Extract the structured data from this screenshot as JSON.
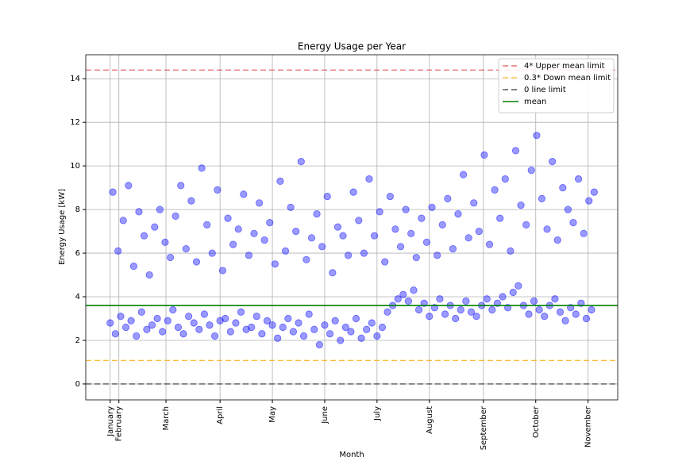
{
  "chart_data": {
    "type": "scatter",
    "title": "Energy Usage per Year",
    "x_label": "Month",
    "y_label": "Energy Usage [kW]",
    "color": "#0000ff",
    "grid": true,
    "legend": "upper right",
    "xlim": [
      -14,
      291
    ],
    "ylim": [
      -0.73,
      15.1
    ],
    "xticks": [
      {
        "value": 0,
        "label": "January"
      },
      {
        "value": 5,
        "label": "February"
      },
      {
        "value": 32,
        "label": "March"
      },
      {
        "value": 63,
        "label": "April"
      },
      {
        "value": 93,
        "label": "May"
      },
      {
        "value": 123,
        "label": "June"
      },
      {
        "value": 153,
        "label": "July"
      },
      {
        "value": 183,
        "label": "August"
      },
      {
        "value": 214,
        "label": "September"
      },
      {
        "value": 244,
        "label": "October"
      },
      {
        "value": 274,
        "label": "November"
      }
    ],
    "yticks": [
      0,
      2,
      4,
      6,
      8,
      10,
      12,
      14
    ],
    "hlines": [
      {
        "name": "4* Upper mean limit",
        "value": 14.4,
        "color": "#d62728",
        "dashed": true
      },
      {
        "name": "0.3* Down mean limit",
        "value": 1.08,
        "color": "#ffa500",
        "dashed": true
      },
      {
        "name": "0 line limit",
        "value": 0,
        "color": "#000000",
        "dashed": true
      },
      {
        "name": "mean",
        "value": 3.6,
        "color": "#008000",
        "dashed": false
      }
    ],
    "x": [
      0,
      3,
      6,
      9,
      12,
      15,
      18,
      21,
      24,
      27,
      30,
      33,
      36,
      39,
      42,
      45,
      48,
      51,
      54,
      57,
      60,
      63,
      66,
      69,
      72,
      75,
      78,
      81,
      84,
      87,
      90,
      93,
      96,
      99,
      102,
      105,
      108,
      111,
      114,
      117,
      120,
      123,
      126,
      129,
      132,
      135,
      138,
      141,
      144,
      147,
      150,
      153,
      156,
      159,
      162,
      165,
      168,
      171,
      174,
      177,
      180,
      183,
      186,
      189,
      192,
      195,
      198,
      201,
      204,
      207,
      210,
      213,
      216,
      219,
      222,
      225,
      228,
      231,
      234,
      237,
      240,
      243,
      246,
      249,
      252,
      255,
      258,
      261,
      264,
      267,
      270,
      273,
      276,
      1.5,
      4.5,
      7.5,
      10.5,
      13.5,
      16.5,
      19.5,
      22.5,
      25.5,
      28.5,
      31.5,
      34.5,
      37.5,
      40.5,
      43.5,
      46.5,
      49.5,
      52.5,
      55.5,
      58.5,
      61.5,
      64.5,
      67.5,
      70.5,
      73.5,
      76.5,
      79.5,
      82.5,
      85.5,
      88.5,
      91.5,
      94.5,
      97.5,
      100.5,
      103.5,
      106.5,
      109.5,
      112.5,
      115.5,
      118.5,
      121.5,
      124.5,
      127.5,
      130.5,
      133.5,
      136.5,
      139.5,
      142.5,
      145.5,
      148.5,
      151.5,
      154.5,
      157.5,
      160.5,
      163.5,
      166.5,
      169.5,
      172.5,
      175.5,
      178.5,
      181.5,
      184.5,
      187.5,
      190.5,
      193.5,
      196.5,
      199.5,
      202.5,
      205.5,
      208.5,
      211.5,
      214.5,
      217.5,
      220.5,
      223.5,
      226.5,
      229.5,
      232.5,
      235.5,
      238.5,
      241.5,
      244.5,
      247.5,
      250.5,
      253.5,
      256.5,
      259.5,
      262.5,
      265.5,
      268.5,
      271.5,
      274.5,
      277.5
    ],
    "values": [
      2.8,
      2.3,
      3.1,
      2.6,
      2.9,
      2.2,
      3.3,
      2.5,
      2.7,
      3.0,
      2.4,
      2.9,
      3.4,
      2.6,
      2.3,
      3.1,
      2.8,
      2.5,
      3.2,
      2.7,
      2.2,
      2.9,
      3.0,
      2.4,
      2.8,
      3.3,
      2.5,
      2.6,
      3.1,
      2.3,
      2.9,
      2.7,
      2.1,
      2.6,
      3.0,
      2.4,
      2.8,
      2.2,
      3.2,
      2.5,
      1.8,
      2.7,
      2.3,
      2.9,
      2.0,
      2.6,
      2.4,
      3.0,
      2.1,
      2.5,
      2.8,
      2.2,
      2.6,
      3.3,
      3.6,
      3.9,
      4.1,
      3.8,
      4.3,
      3.4,
      3.7,
      3.1,
      3.5,
      3.9,
      3.2,
      3.6,
      3.0,
      3.4,
      3.8,
      3.3,
      3.1,
      3.6,
      3.9,
      3.4,
      3.7,
      4.0,
      3.5,
      4.2,
      4.5,
      3.6,
      3.2,
      3.8,
      3.4,
      3.1,
      3.6,
      3.9,
      3.3,
      2.9,
      3.5,
      3.2,
      3.7,
      3.0,
      3.4,
      8.8,
      6.1,
      7.5,
      9.1,
      5.4,
      7.9,
      6.8,
      5.0,
      7.2,
      8.0,
      6.5,
      5.8,
      7.7,
      9.1,
      6.2,
      8.4,
      5.6,
      9.9,
      7.3,
      6.0,
      8.9,
      5.2,
      7.6,
      6.4,
      7.1,
      8.7,
      5.9,
      6.9,
      8.3,
      6.6,
      7.4,
      5.5,
      9.3,
      6.1,
      8.1,
      7.0,
      10.2,
      5.7,
      6.7,
      7.8,
      6.3,
      8.6,
      5.1,
      7.2,
      6.8,
      5.9,
      8.8,
      7.5,
      6.0,
      9.4,
      6.8,
      7.9,
      5.6,
      8.6,
      7.1,
      6.3,
      8.0,
      6.9,
      5.8,
      7.6,
      6.5,
      8.1,
      5.9,
      7.3,
      8.5,
      6.2,
      7.8,
      9.6,
      6.7,
      8.3,
      7.0,
      10.5,
      6.4,
      8.9,
      7.6,
      9.4,
      6.1,
      10.7,
      8.2,
      7.3,
      9.8,
      11.4,
      8.5,
      7.1,
      10.2,
      6.6,
      9.0,
      8.0,
      7.4,
      9.4,
      6.9,
      8.4,
      8.8
    ]
  }
}
